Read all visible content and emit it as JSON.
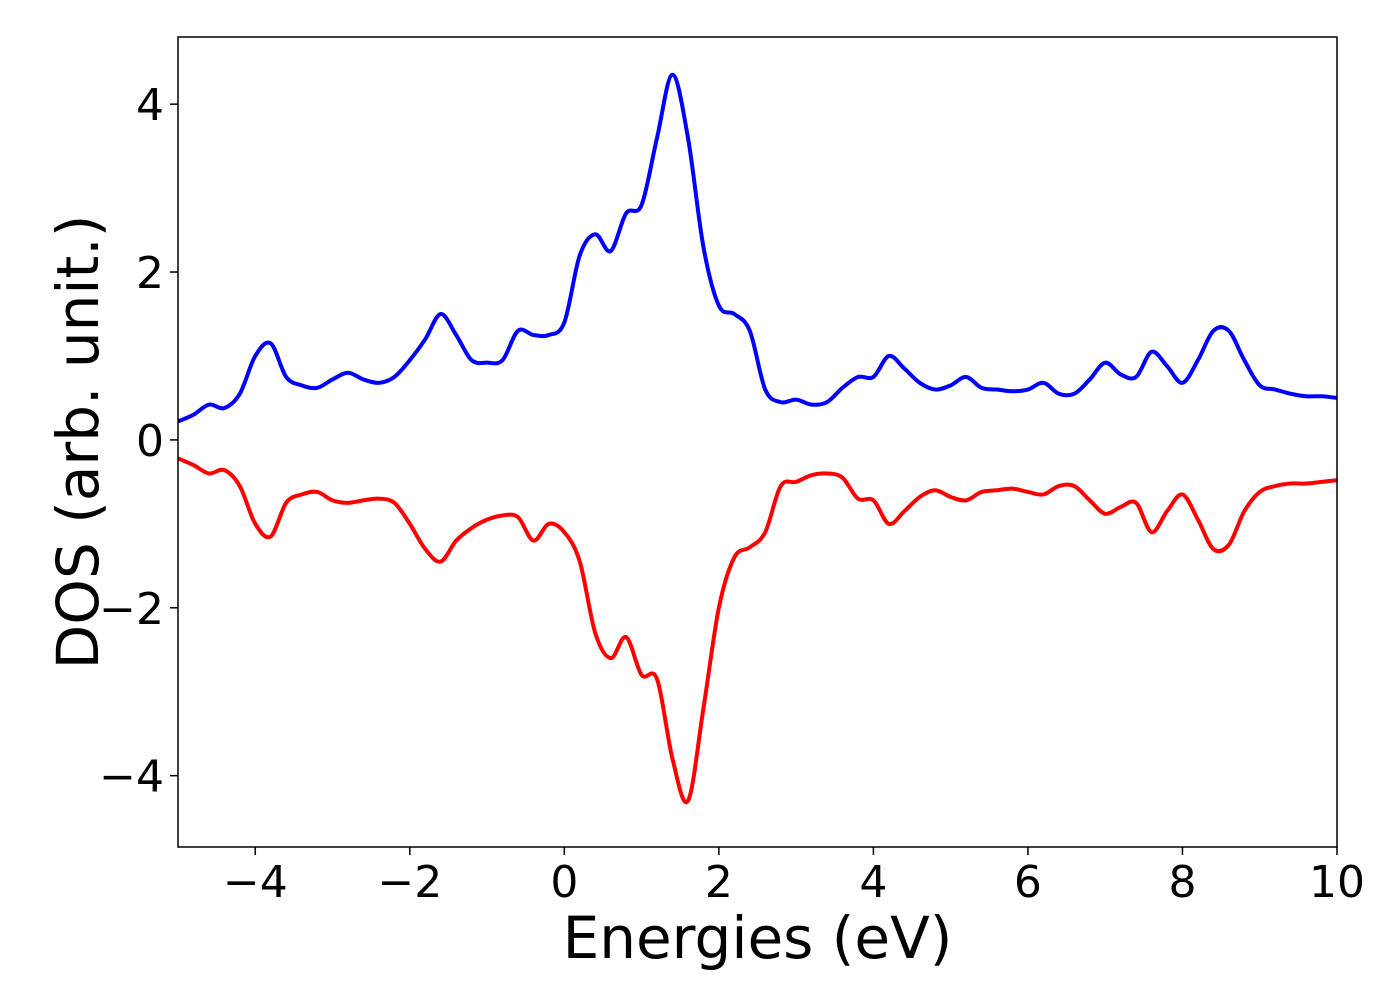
{
  "chart_data": {
    "type": "line",
    "title": "",
    "xlabel": "Energies (eV)",
    "ylabel": "DOS (arb. unit.)",
    "xlim": [
      -5,
      10
    ],
    "ylim": [
      -4.85,
      4.8
    ],
    "grid": false,
    "legend": "none",
    "x_ticks": [
      -4,
      -2,
      0,
      2,
      4,
      6,
      8,
      10
    ],
    "x_tick_labels": [
      "−4",
      "−2",
      "0",
      "2",
      "4",
      "6",
      "8",
      "10"
    ],
    "y_ticks": [
      -4,
      -2,
      0,
      2,
      4
    ],
    "y_tick_labels": [
      "−4",
      "−2",
      "0",
      "2",
      "4"
    ],
    "series": [
      {
        "color": "#0000ff",
        "x": [
          -5.0,
          -4.8,
          -4.6,
          -4.4,
          -4.2,
          -4.0,
          -3.8,
          -3.6,
          -3.4,
          -3.2,
          -3.0,
          -2.8,
          -2.6,
          -2.4,
          -2.2,
          -2.0,
          -1.8,
          -1.6,
          -1.4,
          -1.2,
          -1.0,
          -0.8,
          -0.6,
          -0.4,
          -0.2,
          0.0,
          0.2,
          0.4,
          0.6,
          0.8,
          1.0,
          1.2,
          1.4,
          1.6,
          1.8,
          2.0,
          2.2,
          2.4,
          2.6,
          2.8,
          3.0,
          3.2,
          3.4,
          3.6,
          3.8,
          4.0,
          4.2,
          4.4,
          4.6,
          4.8,
          5.0,
          5.2,
          5.4,
          5.6,
          5.8,
          6.0,
          6.2,
          6.4,
          6.6,
          6.8,
          7.0,
          7.2,
          7.4,
          7.6,
          7.8,
          8.0,
          8.2,
          8.4,
          8.6,
          8.8,
          9.0,
          9.2,
          9.4,
          9.6,
          9.8,
          10.0
        ],
        "y": [
          0.22,
          0.3,
          0.42,
          0.38,
          0.55,
          1.0,
          1.15,
          0.75,
          0.65,
          0.62,
          0.72,
          0.8,
          0.72,
          0.68,
          0.75,
          0.95,
          1.2,
          1.5,
          1.25,
          0.95,
          0.92,
          0.95,
          1.3,
          1.25,
          1.25,
          1.4,
          2.2,
          2.45,
          2.25,
          2.7,
          2.8,
          3.6,
          4.35,
          3.6,
          2.3,
          1.6,
          1.5,
          1.3,
          0.6,
          0.45,
          0.48,
          0.42,
          0.45,
          0.62,
          0.75,
          0.75,
          1.0,
          0.85,
          0.68,
          0.6,
          0.65,
          0.75,
          0.62,
          0.6,
          0.58,
          0.6,
          0.68,
          0.55,
          0.55,
          0.72,
          0.92,
          0.78,
          0.75,
          1.05,
          0.88,
          0.68,
          0.95,
          1.3,
          1.3,
          0.95,
          0.65,
          0.6,
          0.55,
          0.52,
          0.52,
          0.5
        ]
      },
      {
        "color": "#ff0000",
        "x": [
          -5.0,
          -4.8,
          -4.6,
          -4.4,
          -4.2,
          -4.0,
          -3.8,
          -3.6,
          -3.4,
          -3.2,
          -3.0,
          -2.8,
          -2.6,
          -2.4,
          -2.2,
          -2.0,
          -1.8,
          -1.6,
          -1.4,
          -1.2,
          -1.0,
          -0.8,
          -0.6,
          -0.4,
          -0.2,
          0.0,
          0.2,
          0.4,
          0.6,
          0.8,
          1.0,
          1.2,
          1.4,
          1.6,
          1.8,
          2.0,
          2.2,
          2.4,
          2.6,
          2.8,
          3.0,
          3.2,
          3.4,
          3.6,
          3.8,
          4.0,
          4.2,
          4.4,
          4.6,
          4.8,
          5.0,
          5.2,
          5.4,
          5.6,
          5.8,
          6.0,
          6.2,
          6.4,
          6.6,
          6.8,
          7.0,
          7.2,
          7.4,
          7.6,
          7.8,
          8.0,
          8.2,
          8.4,
          8.6,
          8.8,
          9.0,
          9.2,
          9.4,
          9.6,
          9.8,
          10.0
        ],
        "y": [
          -0.22,
          -0.3,
          -0.4,
          -0.36,
          -0.55,
          -1.0,
          -1.15,
          -0.75,
          -0.65,
          -0.62,
          -0.72,
          -0.75,
          -0.72,
          -0.7,
          -0.75,
          -1.0,
          -1.3,
          -1.45,
          -1.2,
          -1.05,
          -0.95,
          -0.9,
          -0.92,
          -1.2,
          -1.0,
          -1.1,
          -1.45,
          -2.3,
          -2.6,
          -2.35,
          -2.8,
          -2.85,
          -3.8,
          -4.3,
          -3.2,
          -2.0,
          -1.4,
          -1.28,
          -1.1,
          -0.55,
          -0.5,
          -0.42,
          -0.4,
          -0.45,
          -0.7,
          -0.72,
          -1.0,
          -0.85,
          -0.68,
          -0.6,
          -0.68,
          -0.72,
          -0.62,
          -0.6,
          -0.58,
          -0.62,
          -0.65,
          -0.55,
          -0.55,
          -0.72,
          -0.88,
          -0.8,
          -0.75,
          -1.1,
          -0.85,
          -0.65,
          -0.95,
          -1.3,
          -1.25,
          -0.85,
          -0.62,
          -0.55,
          -0.52,
          -0.52,
          -0.5,
          -0.48
        ]
      }
    ]
  }
}
